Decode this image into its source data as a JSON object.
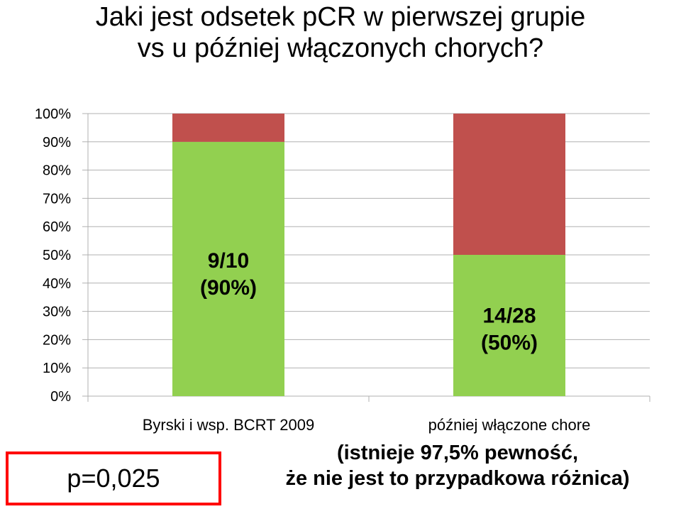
{
  "title": {
    "line1": "Jaki jest odsetek pCR w pierwszej grupie",
    "line2": "vs u później włączonych chorych?"
  },
  "chart_data": {
    "type": "bar",
    "stacked": true,
    "percent_stacked": true,
    "categories": [
      "Byrski i wsp. BCRT 2009",
      "później włączone chore"
    ],
    "series": [
      {
        "color": "#92d050",
        "values": [
          90,
          50
        ]
      },
      {
        "color": "#c0504d",
        "values": [
          10,
          50
        ]
      }
    ],
    "data_labels": [
      {
        "line1": "9/10",
        "line2": "(90%)"
      },
      {
        "line1": "14/28",
        "line2": "(50%)"
      }
    ],
    "yticks": [
      "0%",
      "10%",
      "20%",
      "30%",
      "40%",
      "50%",
      "60%",
      "70%",
      "80%",
      "90%",
      "100%"
    ],
    "ylim": [
      0,
      100
    ],
    "grid": true,
    "title": "",
    "xlabel": "",
    "ylabel": ""
  },
  "pvalue_box": {
    "text": "p=0,025",
    "border_color": "#ff0000"
  },
  "note": {
    "line1": "(istnieje 97,5% pewność,",
    "line2": "że nie jest to przypadkowa różnica)"
  }
}
